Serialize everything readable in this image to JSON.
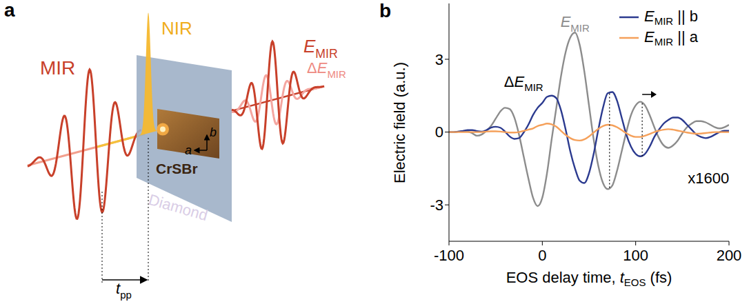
{
  "diagram": {
    "panel_label": "a",
    "mir": "MIR",
    "nir": "NIR",
    "e_mir": [
      {
        "i": "E"
      },
      {
        "sub": "MIR"
      }
    ],
    "delta_e_mir": [
      "Δ",
      {
        "i": "E"
      },
      {
        "sub": "MIR"
      }
    ],
    "sample": "CrSBr",
    "substrate": "Diamond",
    "axis_a": "a",
    "axis_b": "b",
    "delay": [
      {
        "i": "t"
      },
      {
        "sub": "pp"
      }
    ]
  },
  "chart_data": {
    "panel_label": "b",
    "type": "line",
    "x_label": [
      "EOS delay time, ",
      {
        "i": "t"
      },
      {
        "sub": "EOS"
      },
      " (fs)"
    ],
    "y_label": "Electric field (a.u.)",
    "xlim": [
      -100,
      200
    ],
    "xticks": [
      -100,
      0,
      100,
      200
    ],
    "ylim": [
      -4.5,
      5.3
    ],
    "yticks": [
      -3,
      0,
      3
    ],
    "grid": false,
    "legend": "upper right",
    "x": [
      -100,
      -95,
      -90,
      -85,
      -80,
      -75,
      -70,
      -65,
      -60,
      -55,
      -50,
      -45,
      -40,
      -35,
      -30,
      -25,
      -20,
      -15,
      -10,
      -5,
      0,
      5,
      10,
      15,
      20,
      25,
      30,
      35,
      40,
      45,
      50,
      55,
      60,
      65,
      70,
      75,
      80,
      85,
      90,
      95,
      100,
      105,
      110,
      115,
      120,
      125,
      130,
      135,
      140,
      145,
      150,
      155,
      160,
      165,
      170,
      175,
      180,
      185,
      190,
      195,
      200
    ],
    "series": [
      {
        "color": "#8c8c8c",
        "values": [
          0,
          0,
          0.02,
          0.03,
          0.02,
          -0.05,
          -0.15,
          -0.1,
          0.05,
          0.25,
          0.55,
          0.85,
          1.0,
          0.95,
          0.6,
          -0.1,
          -1.0,
          -1.9,
          -2.7,
          -3.05,
          -2.7,
          -1.7,
          -0.3,
          1.0,
          2.3,
          3.3,
          3.9,
          4.1,
          3.6,
          2.5,
          1.1,
          -0.3,
          -1.4,
          -2.1,
          -2.35,
          -2.2,
          -1.6,
          -0.8,
          0.0,
          0.7,
          1.1,
          1.25,
          1.1,
          0.7,
          0.2,
          -0.25,
          -0.55,
          -0.65,
          -0.55,
          -0.35,
          -0.05,
          0.2,
          0.35,
          0.45,
          0.45,
          0.4,
          0.3,
          0.2,
          0.15,
          0.2,
          0.3
        ]
      },
      {
        "name": [
          {
            "i": "E"
          },
          {
            "sub": "MIR"
          },
          " || b"
        ],
        "color": "#2b3a8f",
        "values": [
          0,
          0,
          0.02,
          0.05,
          0.08,
          0.08,
          0.04,
          0.02,
          0.08,
          0.18,
          0.22,
          0.18,
          0.02,
          -0.18,
          -0.28,
          -0.25,
          -0.02,
          0.3,
          0.7,
          1.0,
          1.2,
          1.45,
          1.5,
          1.4,
          0.9,
          0.1,
          -0.8,
          -1.5,
          -2.0,
          -2.1,
          -1.7,
          -0.9,
          0.1,
          1.0,
          1.6,
          1.65,
          1.3,
          0.6,
          -0.1,
          -0.6,
          -0.9,
          -1.0,
          -0.9,
          -0.6,
          -0.2,
          0.1,
          0.35,
          0.5,
          0.6,
          0.6,
          0.5,
          0.3,
          0.1,
          -0.1,
          -0.2,
          -0.25,
          -0.2,
          -0.1,
          0,
          0.05,
          0.05
        ]
      },
      {
        "name": [
          {
            "i": "E"
          },
          {
            "sub": "MIR"
          },
          " || a"
        ],
        "color": "#f5a05a",
        "values": [
          0,
          0,
          0,
          0,
          0,
          0,
          0,
          0,
          0.02,
          0.03,
          0.03,
          0.02,
          0,
          -0.02,
          -0.02,
          0,
          0.05,
          0.1,
          0.15,
          0.25,
          0.3,
          0.35,
          0.32,
          0.22,
          0.05,
          -0.12,
          -0.25,
          -0.33,
          -0.35,
          -0.3,
          -0.18,
          -0.02,
          0.13,
          0.25,
          0.3,
          0.28,
          0.2,
          0.08,
          -0.05,
          -0.15,
          -0.2,
          -0.2,
          -0.15,
          -0.08,
          0,
          0.06,
          0.1,
          0.12,
          0.1,
          0.06,
          0.02,
          -0.02,
          -0.05,
          -0.07,
          -0.06,
          -0.04,
          -0.02,
          0,
          0,
          0,
          0
        ]
      }
    ],
    "annotations": [
      {
        "text": [
          {
            "i": "E"
          },
          {
            "sub": "MIR"
          }
        ],
        "x": 35,
        "y": 4.55,
        "color": "#8c8c8c"
      },
      {
        "text": [
          "Δ",
          {
            "i": "E"
          },
          {
            "sub": "MIR"
          }
        ],
        "x": -20,
        "y": 2.1,
        "color": "#000000"
      },
      {
        "text": "x1600",
        "x": 178,
        "y": -1.9,
        "color": "#000000"
      }
    ],
    "guide_lines": [
      {
        "x": 72,
        "y": [
          -2.3,
          1.65
        ]
      },
      {
        "x": 107,
        "y": [
          -1.0,
          1.22
        ]
      }
    ],
    "shift_arrow": {
      "x": [
        107,
        118
      ],
      "y": 1.55
    }
  }
}
